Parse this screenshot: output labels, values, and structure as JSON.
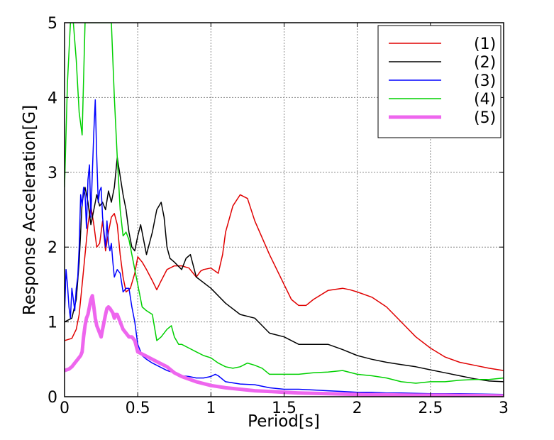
{
  "chart_data": {
    "type": "line",
    "xlabel": "Period[s]",
    "ylabel": "Response Acceleration[G]",
    "xlim": [
      0,
      3
    ],
    "ylim": [
      0,
      5
    ],
    "xticks": [
      "0",
      "0.5",
      "1",
      "1.5",
      "2",
      "2.5",
      "3"
    ],
    "yticks": [
      "0",
      "1",
      "2",
      "3",
      "4",
      "5"
    ],
    "grid": true,
    "legend_position": "top-right",
    "series": [
      {
        "name": "(1)",
        "color": "#e00000",
        "width": 1.5,
        "x": [
          0,
          0.05,
          0.08,
          0.1,
          0.12,
          0.14,
          0.16,
          0.18,
          0.2,
          0.22,
          0.24,
          0.26,
          0.28,
          0.3,
          0.32,
          0.34,
          0.36,
          0.38,
          0.4,
          0.42,
          0.45,
          0.48,
          0.5,
          0.53,
          0.56,
          0.6,
          0.63,
          0.66,
          0.7,
          0.75,
          0.8,
          0.85,
          0.9,
          0.93,
          0.95,
          1.0,
          1.05,
          1.08,
          1.1,
          1.15,
          1.2,
          1.25,
          1.3,
          1.4,
          1.5,
          1.55,
          1.6,
          1.65,
          1.7,
          1.8,
          1.9,
          1.95,
          2.0,
          2.1,
          2.2,
          2.3,
          2.4,
          2.5,
          2.6,
          2.7,
          2.8,
          2.9,
          3.0
        ],
        "y": [
          0.75,
          0.78,
          0.9,
          1.1,
          1.5,
          1.9,
          2.3,
          2.55,
          2.3,
          2.0,
          2.05,
          2.35,
          1.95,
          2.2,
          2.4,
          2.45,
          2.3,
          1.9,
          1.6,
          1.4,
          1.45,
          1.65,
          1.87,
          1.8,
          1.7,
          1.55,
          1.43,
          1.55,
          1.7,
          1.75,
          1.75,
          1.72,
          1.6,
          1.68,
          1.7,
          1.72,
          1.65,
          1.9,
          2.2,
          2.55,
          2.7,
          2.65,
          2.35,
          1.9,
          1.5,
          1.3,
          1.22,
          1.22,
          1.3,
          1.42,
          1.45,
          1.43,
          1.4,
          1.33,
          1.2,
          1.0,
          0.8,
          0.65,
          0.53,
          0.46,
          0.42,
          0.38,
          0.35
        ]
      },
      {
        "name": "(2)",
        "color": "#000000",
        "width": 1.5,
        "x": [
          0,
          0.05,
          0.08,
          0.1,
          0.12,
          0.14,
          0.16,
          0.18,
          0.2,
          0.22,
          0.24,
          0.26,
          0.28,
          0.3,
          0.32,
          0.34,
          0.36,
          0.38,
          0.4,
          0.42,
          0.44,
          0.46,
          0.48,
          0.5,
          0.52,
          0.54,
          0.56,
          0.6,
          0.63,
          0.66,
          0.68,
          0.7,
          0.72,
          0.75,
          0.8,
          0.83,
          0.86,
          0.9,
          1.0,
          1.1,
          1.2,
          1.3,
          1.35,
          1.4,
          1.5,
          1.6,
          1.7,
          1.8,
          1.9,
          2.0,
          2.1,
          2.2,
          2.3,
          2.4,
          2.5,
          2.6,
          2.7,
          2.8,
          2.9,
          3.0
        ],
        "y": [
          1.0,
          1.05,
          1.3,
          1.8,
          2.6,
          2.8,
          2.6,
          2.3,
          2.5,
          2.7,
          2.55,
          2.6,
          2.5,
          2.75,
          2.6,
          2.8,
          3.2,
          2.95,
          2.7,
          2.5,
          2.2,
          2.0,
          1.95,
          2.15,
          2.3,
          2.1,
          1.9,
          2.2,
          2.5,
          2.6,
          2.4,
          2.0,
          1.85,
          1.8,
          1.7,
          1.85,
          1.9,
          1.6,
          1.45,
          1.25,
          1.1,
          1.05,
          0.95,
          0.85,
          0.8,
          0.7,
          0.7,
          0.7,
          0.63,
          0.55,
          0.5,
          0.46,
          0.43,
          0.4,
          0.36,
          0.32,
          0.28,
          0.24,
          0.21,
          0.2
        ]
      },
      {
        "name": "(3)",
        "color": "#0000ff",
        "width": 1.5,
        "x": [
          0,
          0.01,
          0.02,
          0.03,
          0.04,
          0.05,
          0.06,
          0.07,
          0.08,
          0.09,
          0.1,
          0.11,
          0.12,
          0.13,
          0.14,
          0.15,
          0.16,
          0.17,
          0.18,
          0.19,
          0.2,
          0.21,
          0.22,
          0.23,
          0.24,
          0.25,
          0.26,
          0.27,
          0.28,
          0.29,
          0.3,
          0.31,
          0.32,
          0.33,
          0.34,
          0.35,
          0.36,
          0.38,
          0.4,
          0.42,
          0.44,
          0.46,
          0.48,
          0.5,
          0.53,
          0.56,
          0.6,
          0.65,
          0.7,
          0.75,
          0.8,
          0.85,
          0.9,
          0.95,
          1.0,
          1.03,
          1.05,
          1.1,
          1.2,
          1.3,
          1.4,
          1.5,
          1.6,
          1.7,
          1.8,
          1.9,
          2.0,
          2.1,
          2.2,
          2.3,
          2.5,
          2.7,
          3.0
        ],
        "y": [
          1.1,
          1.7,
          1.5,
          1.2,
          1.05,
          1.45,
          1.3,
          1.15,
          1.45,
          1.6,
          2.0,
          2.7,
          2.55,
          2.8,
          2.7,
          2.25,
          2.9,
          3.1,
          2.4,
          3.0,
          3.55,
          3.97,
          3.2,
          2.6,
          2.75,
          2.8,
          2.4,
          2.2,
          2.0,
          2.35,
          2.05,
          1.95,
          2.05,
          1.8,
          1.6,
          1.65,
          1.7,
          1.65,
          1.4,
          1.45,
          1.45,
          1.2,
          1.0,
          0.7,
          0.55,
          0.5,
          0.45,
          0.4,
          0.35,
          0.32,
          0.28,
          0.27,
          0.25,
          0.25,
          0.27,
          0.3,
          0.28,
          0.2,
          0.17,
          0.16,
          0.12,
          0.1,
          0.1,
          0.09,
          0.08,
          0.07,
          0.06,
          0.06,
          0.05,
          0.05,
          0.04,
          0.04,
          0.03
        ]
      },
      {
        "name": "(4)",
        "color": "#00d000",
        "width": 1.5,
        "x": [
          0,
          0.02,
          0.04,
          0.06,
          0.08,
          0.1,
          0.12,
          0.14,
          0.16,
          0.18,
          0.2,
          0.22,
          0.24,
          0.26,
          0.28,
          0.3,
          0.32,
          0.34,
          0.36,
          0.38,
          0.4,
          0.42,
          0.44,
          0.46,
          0.48,
          0.5,
          0.53,
          0.56,
          0.6,
          0.63,
          0.66,
          0.7,
          0.73,
          0.75,
          0.78,
          0.8,
          0.85,
          0.9,
          0.95,
          1.0,
          1.05,
          1.1,
          1.15,
          1.2,
          1.25,
          1.3,
          1.35,
          1.4,
          1.5,
          1.6,
          1.7,
          1.8,
          1.9,
          2.0,
          2.1,
          2.2,
          2.3,
          2.4,
          2.5,
          2.6,
          2.7,
          2.8,
          2.9,
          3.0
        ],
        "y": [
          2.8,
          4.2,
          5.0,
          5.0,
          4.5,
          3.8,
          3.5,
          5.0,
          5.0,
          5.0,
          5.0,
          5.0,
          5.0,
          5.0,
          5.0,
          5.0,
          5.0,
          4.0,
          3.2,
          2.5,
          2.15,
          2.2,
          2.1,
          1.9,
          1.7,
          1.5,
          1.2,
          1.15,
          1.1,
          0.75,
          0.8,
          0.9,
          0.95,
          0.8,
          0.7,
          0.7,
          0.65,
          0.6,
          0.55,
          0.52,
          0.45,
          0.4,
          0.38,
          0.4,
          0.45,
          0.42,
          0.38,
          0.3,
          0.3,
          0.3,
          0.32,
          0.33,
          0.35,
          0.3,
          0.28,
          0.25,
          0.2,
          0.18,
          0.2,
          0.2,
          0.22,
          0.23,
          0.23,
          0.25
        ]
      },
      {
        "name": "(5)",
        "color": "#ee66ee",
        "width": 5,
        "x": [
          0,
          0.03,
          0.05,
          0.07,
          0.09,
          0.11,
          0.12,
          0.13,
          0.14,
          0.15,
          0.16,
          0.17,
          0.18,
          0.19,
          0.2,
          0.21,
          0.22,
          0.23,
          0.24,
          0.25,
          0.26,
          0.27,
          0.28,
          0.29,
          0.3,
          0.31,
          0.32,
          0.33,
          0.34,
          0.35,
          0.36,
          0.38,
          0.4,
          0.42,
          0.44,
          0.46,
          0.48,
          0.5,
          0.55,
          0.6,
          0.65,
          0.7,
          0.75,
          0.8,
          0.9,
          1.0,
          1.1,
          1.2,
          1.3,
          1.4,
          1.5,
          1.6,
          1.7,
          1.8,
          1.9,
          2.0,
          2.2,
          2.4,
          2.6,
          2.8,
          3.0
        ],
        "y": [
          0.35,
          0.37,
          0.4,
          0.45,
          0.5,
          0.55,
          0.6,
          0.8,
          0.95,
          1.05,
          1.1,
          1.2,
          1.3,
          1.35,
          1.2,
          1.05,
          0.95,
          0.9,
          0.85,
          0.8,
          0.9,
          1.0,
          1.1,
          1.18,
          1.2,
          1.18,
          1.15,
          1.12,
          1.05,
          1.1,
          1.1,
          1.0,
          0.9,
          0.85,
          0.8,
          0.8,
          0.75,
          0.6,
          0.55,
          0.5,
          0.45,
          0.4,
          0.32,
          0.27,
          0.2,
          0.15,
          0.12,
          0.1,
          0.08,
          0.07,
          0.06,
          0.05,
          0.045,
          0.04,
          0.035,
          0.03,
          0.025,
          0.02,
          0.02,
          0.015,
          0.01
        ]
      }
    ]
  }
}
